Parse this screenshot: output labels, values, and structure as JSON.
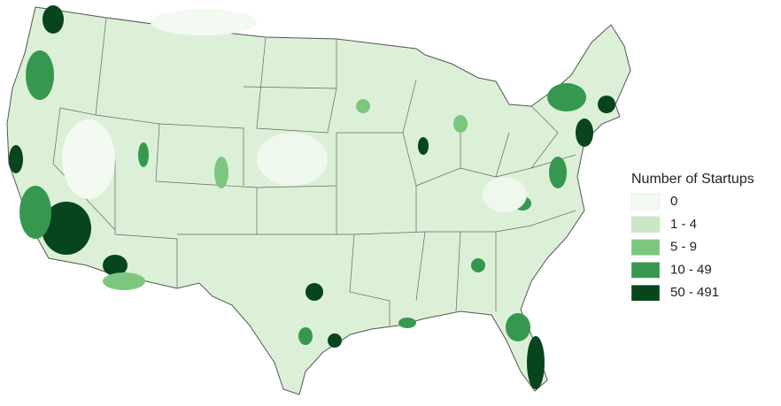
{
  "legend": {
    "title": "Number of Startups",
    "items": [
      {
        "label": "0",
        "color": "#f3faf1"
      },
      {
        "label": "1 - 4",
        "color": "#c9e8c3"
      },
      {
        "label": "5 - 9",
        "color": "#7cc77f"
      },
      {
        "label": "10 - 49",
        "color": "#36984f"
      },
      {
        "label": "50 - 491",
        "color": "#07451d"
      }
    ]
  }
}
